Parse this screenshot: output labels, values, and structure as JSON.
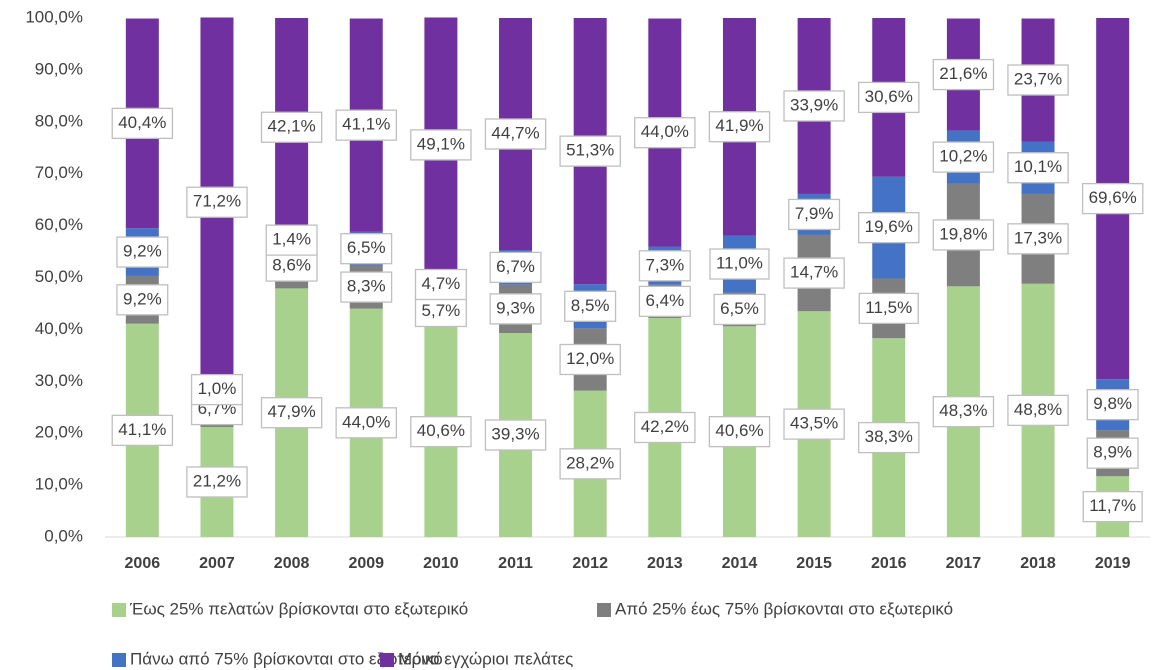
{
  "chart_data": {
    "type": "stacked_bar",
    "categories": [
      "2006",
      "2007",
      "2008",
      "2009",
      "2010",
      "2011",
      "2012",
      "2013",
      "2014",
      "2015",
      "2016",
      "2017",
      "2018",
      "2019"
    ],
    "series": [
      {
        "name": "Έως 25% πελατών βρίσκονται στο εξωτερικό",
        "color": "#a9d18e",
        "values": [
          41.1,
          21.2,
          47.9,
          44.0,
          40.6,
          39.3,
          28.2,
          42.2,
          40.6,
          43.5,
          38.3,
          48.3,
          48.8,
          11.7
        ],
        "value_labels": [
          "41,1%",
          "21,2%",
          "47,9%",
          "44,0%",
          "40,6%",
          "39,3%",
          "28,2%",
          "42,2%",
          "40,6%",
          "43,5%",
          "38,3%",
          "48,3%",
          "48,8%",
          "11,7%"
        ]
      },
      {
        "name": "Από 25% έως 75% βρίσκονται στο εξωτερικό",
        "color": "#7f7f7f",
        "values": [
          9.2,
          6.7,
          8.6,
          8.3,
          5.7,
          9.3,
          12.0,
          6.4,
          6.5,
          14.7,
          11.5,
          19.8,
          17.3,
          8.9
        ],
        "value_labels": [
          "9,2%",
          "6,7%",
          "8,6%",
          "8,3%",
          "5,7%",
          "9,3%",
          "12,0%",
          "6,4%",
          "6,5%",
          "14,7%",
          "11,5%",
          "19,8%",
          "17,3%",
          "8,9%"
        ]
      },
      {
        "name": "Πάνω από 75% βρίσκονται στο εξωτερικό",
        "color": "#4472c4",
        "values": [
          9.2,
          1.0,
          1.4,
          6.5,
          4.7,
          6.7,
          8.5,
          7.3,
          11.0,
          7.9,
          19.6,
          10.2,
          10.1,
          9.8
        ],
        "value_labels": [
          "9,2%",
          "1,0%",
          "1,4%",
          "6,5%",
          "4,7%",
          "6,7%",
          "8,5%",
          "7,3%",
          "11,0%",
          "7,9%",
          "19,6%",
          "10,2%",
          "10,1%",
          "9,8%"
        ]
      },
      {
        "name": "Μόνο εγχώριοι πελάτες",
        "color": "#7030a0",
        "values": [
          40.4,
          71.2,
          42.1,
          41.1,
          49.1,
          44.7,
          51.3,
          44.0,
          41.9,
          33.9,
          30.6,
          21.6,
          23.7,
          69.6
        ],
        "value_labels": [
          "40,4%",
          "71,2%",
          "42,1%",
          "41,1%",
          "49,1%",
          "44,7%",
          "51,3%",
          "44,0%",
          "41,9%",
          "33,9%",
          "30,6%",
          "21,6%",
          "23,7%",
          "69,6%"
        ]
      }
    ],
    "ylim": [
      0,
      100
    ],
    "yticks": [
      {
        "value": 0,
        "label": "0,0%"
      },
      {
        "value": 10,
        "label": "10,0%"
      },
      {
        "value": 20,
        "label": "20,0%"
      },
      {
        "value": 30,
        "label": "30,0%"
      },
      {
        "value": 40,
        "label": "40,0%"
      },
      {
        "value": 50,
        "label": "50,0%"
      },
      {
        "value": 60,
        "label": "60,0%"
      },
      {
        "value": 70,
        "label": "70,0%"
      },
      {
        "value": 80,
        "label": "80,0%"
      },
      {
        "value": 90,
        "label": "90,0%"
      },
      {
        "value": 100,
        "label": "100,0%"
      }
    ],
    "legend": "bottom"
  }
}
